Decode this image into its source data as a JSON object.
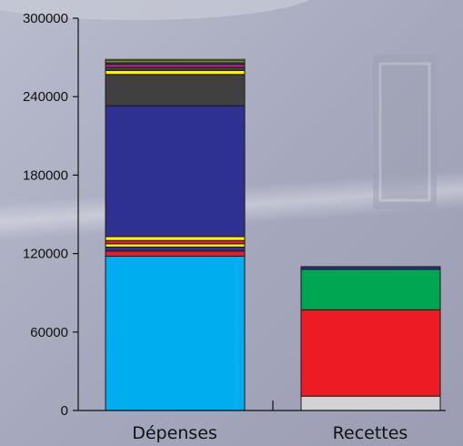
{
  "chart_data": {
    "type": "bar",
    "stacked": true,
    "title": "",
    "xlabel": "",
    "ylabel": "",
    "ylim": [
      0,
      300000
    ],
    "yticks": [
      0,
      60000,
      120000,
      180000,
      240000,
      300000
    ],
    "ytick_labels": [
      "0",
      "60000",
      "120000",
      "180000",
      "240000",
      "300000"
    ],
    "grid": false,
    "categories": [
      "Dépenses",
      "Recettes"
    ],
    "stacks": [
      {
        "category": "Dépenses",
        "segments": [
          {
            "value": 118000,
            "color": "#00adef"
          },
          {
            "value": 4000,
            "color": "#ed1c24"
          },
          {
            "value": 3000,
            "color": "#2e3192"
          },
          {
            "value": 2500,
            "color": "#fff200"
          },
          {
            "value": 2500,
            "color": "#ed1c24"
          },
          {
            "value": 3000,
            "color": "#fff200"
          },
          {
            "value": 100000,
            "color": "#2e3192"
          },
          {
            "value": 24000,
            "color": "#404040"
          },
          {
            "value": 3000,
            "color": "#fff200"
          },
          {
            "value": 2500,
            "color": "#404040"
          },
          {
            "value": 2000,
            "color": "#e0218a"
          },
          {
            "value": 1500,
            "color": "#2e3192"
          },
          {
            "value": 1500,
            "color": "#8dc63f"
          },
          {
            "value": 1000,
            "color": "#fff200"
          }
        ]
      },
      {
        "category": "Recettes",
        "segments": [
          {
            "value": 11000,
            "color": "#d1d3d4"
          },
          {
            "value": 66000,
            "color": "#ed1c24"
          },
          {
            "value": 31000,
            "color": "#00a651"
          },
          {
            "value": 2000,
            "color": "#2e3192"
          }
        ]
      }
    ],
    "colors": {
      "background": "#a9abbf",
      "axis": "#111111",
      "segment_border": "#1a1a1a"
    }
  }
}
